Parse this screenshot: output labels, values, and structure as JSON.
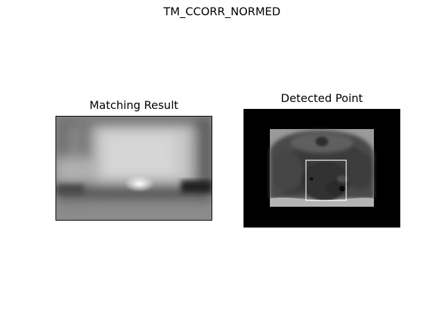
{
  "figure": {
    "suptitle": "TM_CCORR_NORMED"
  },
  "panels": [
    {
      "title": "Matching Result",
      "content": "grayscale correlation heatmap"
    },
    {
      "title": "Detected Point",
      "content": "grayscale bear photo with white detection rectangle"
    }
  ],
  "colors": {
    "background": "#ffffff",
    "image_bg": "#000000",
    "rectangle": "#ffffff"
  }
}
